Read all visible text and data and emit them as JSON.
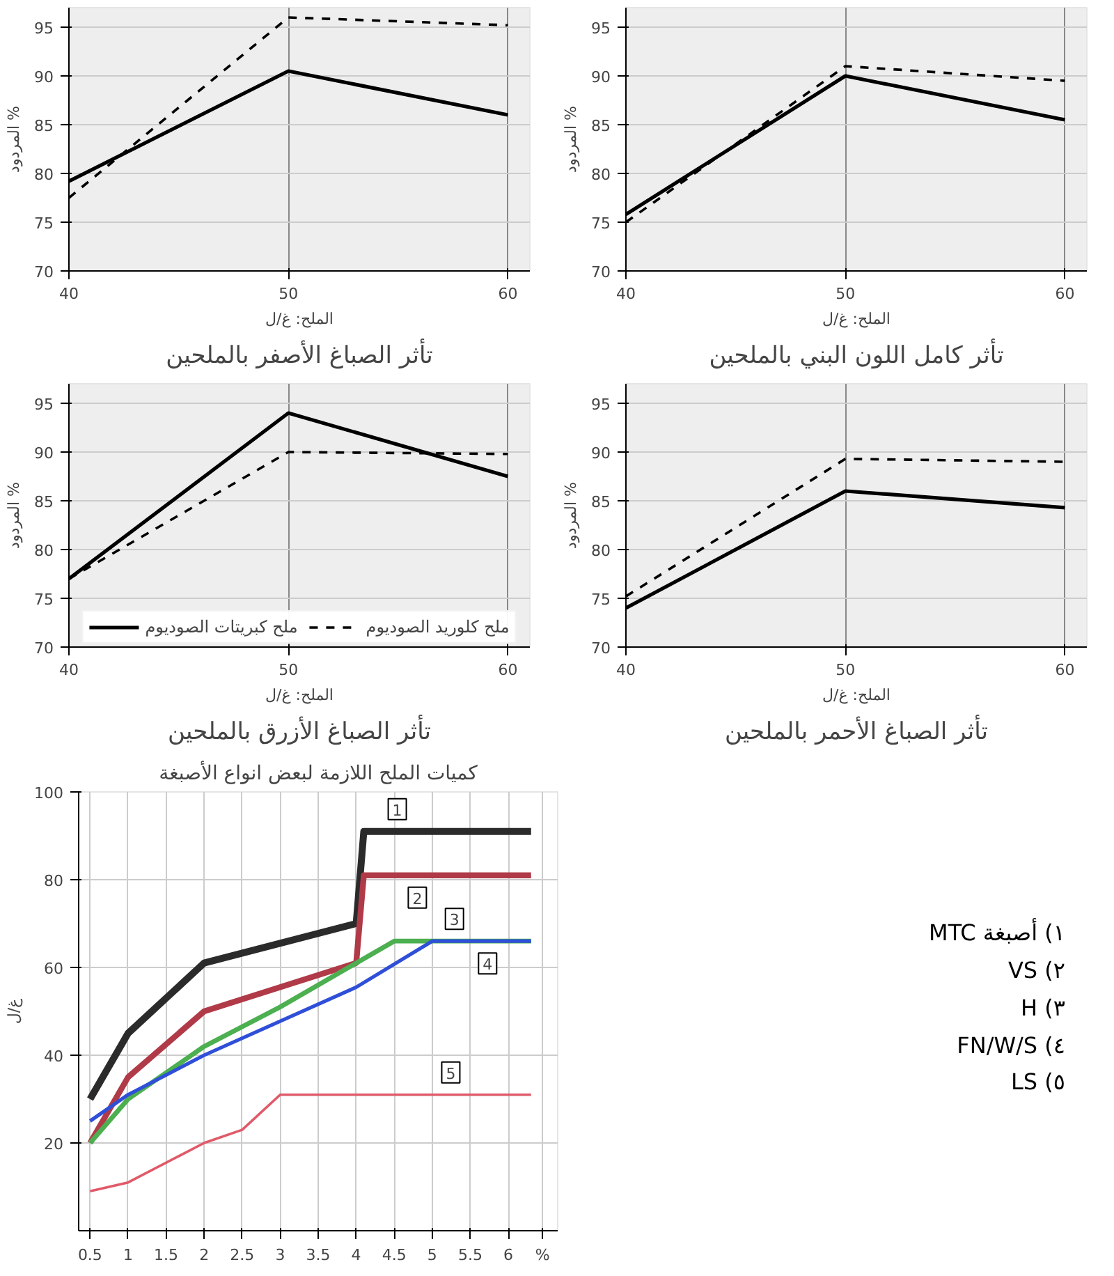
{
  "chart_data": [
    {
      "type": "line",
      "title": "تأثر الصباغ الأصفر بالملحين",
      "xlabel": "الملح: غ/ل",
      "ylabel": "المردود %",
      "x": [
        40,
        50,
        60
      ],
      "xlim": [
        40,
        61
      ],
      "xticks": [
        40,
        50,
        60
      ],
      "ylim": [
        70,
        97
      ],
      "yticks": [
        70,
        75,
        80,
        85,
        90,
        95
      ],
      "grid": true,
      "series": [
        {
          "color": "#000000",
          "line_style": "solid",
          "values": [
            79.2,
            90.5,
            86
          ]
        },
        {
          "color": "#000000",
          "line_style": "dashed",
          "values": [
            77.5,
            96,
            95.2
          ]
        }
      ]
    },
    {
      "type": "line",
      "title": "تأثر كامل اللون البني بالملحين",
      "xlabel": "الملح: غ/ل",
      "ylabel": "المردود %",
      "x": [
        40,
        50,
        60
      ],
      "xlim": [
        40,
        61
      ],
      "xticks": [
        40,
        50,
        60
      ],
      "ylim": [
        70,
        97
      ],
      "yticks": [
        70,
        75,
        80,
        85,
        90,
        95
      ],
      "grid": true,
      "series": [
        {
          "color": "#000000",
          "line_style": "solid",
          "values": [
            75.8,
            90,
            85.5
          ]
        },
        {
          "color": "#000000",
          "line_style": "dashed",
          "values": [
            75,
            91,
            89.5
          ]
        }
      ]
    },
    {
      "type": "line",
      "title": "تأثر الصباغ الأزرق بالملحين",
      "xlabel": "الملح: غ/ل",
      "ylabel": "المردود %",
      "x": [
        40,
        50,
        60
      ],
      "xlim": [
        40,
        61
      ],
      "xticks": [
        40,
        50,
        60
      ],
      "ylim": [
        70,
        97
      ],
      "yticks": [
        70,
        75,
        80,
        85,
        90,
        95
      ],
      "grid": true,
      "legend": "bottom",
      "series": [
        {
          "name": "ملح كبريتات الصوديوم",
          "color": "#000000",
          "line_style": "solid",
          "values": [
            77,
            94,
            87.5
          ]
        },
        {
          "name": "ملح كلوريد الصوديوم",
          "color": "#000000",
          "line_style": "dashed",
          "values": [
            77,
            90,
            89.8
          ]
        }
      ]
    },
    {
      "type": "line",
      "title": "تأثر الصباغ الأحمر بالملحين",
      "xlabel": "الملح: غ/ل",
      "ylabel": "المردود %",
      "x": [
        40,
        50,
        60
      ],
      "xlim": [
        40,
        61
      ],
      "xticks": [
        40,
        50,
        60
      ],
      "ylim": [
        70,
        97
      ],
      "yticks": [
        70,
        75,
        80,
        85,
        90,
        95
      ],
      "grid": true,
      "series": [
        {
          "color": "#000000",
          "line_style": "solid",
          "values": [
            74,
            86,
            84.3
          ]
        },
        {
          "color": "#000000",
          "line_style": "dashed",
          "values": [
            75.2,
            89.3,
            89
          ]
        }
      ]
    },
    {
      "type": "line",
      "title": "كميات الملح اللازمة لبعض انواع الأصبغة",
      "ylabel": "غ/ل",
      "xlim": [
        0.35,
        6.65
      ],
      "xticks": [
        0.5,
        1,
        1.5,
        2,
        2.5,
        3,
        3.5,
        4,
        4.5,
        5,
        5.5,
        6,
        {
          "value": 6.45,
          "label": "%"
        }
      ],
      "ylim": [
        0,
        100
      ],
      "yticks": [
        20,
        40,
        60,
        80,
        100
      ],
      "grid": true,
      "series": [
        {
          "name": "1",
          "color": "#2b2b2b",
          "x": [
            0.5,
            1,
            2,
            4,
            4.1,
            6.3
          ],
          "values": [
            30,
            45,
            61,
            70,
            91,
            91
          ]
        },
        {
          "name": "2",
          "color": "#b03a48",
          "x": [
            0.5,
            1,
            2,
            4,
            4.1,
            6.3
          ],
          "values": [
            20,
            35,
            50,
            61,
            81,
            81
          ]
        },
        {
          "name": "3",
          "color": "#4caf50",
          "x": [
            0.5,
            1,
            2,
            3,
            4,
            4.5,
            6.3
          ],
          "values": [
            20,
            30,
            42,
            51,
            61,
            66,
            66
          ]
        },
        {
          "name": "4",
          "color": "#2f4fd8",
          "x": [
            0.5,
            1,
            2,
            4,
            5,
            6.3
          ],
          "values": [
            25,
            31,
            40,
            55.5,
            66,
            66
          ]
        },
        {
          "name": "5",
          "color": "#e05a6a",
          "x": [
            0.5,
            1,
            2,
            2.5,
            3,
            6.3
          ],
          "values": [
            9,
            11,
            20,
            23,
            31,
            31
          ]
        }
      ],
      "annotations": [
        "١) أصبغة MTC",
        "٢) VS",
        "٣) H",
        "٤) FN/W/S",
        "٥) LS"
      ]
    }
  ]
}
